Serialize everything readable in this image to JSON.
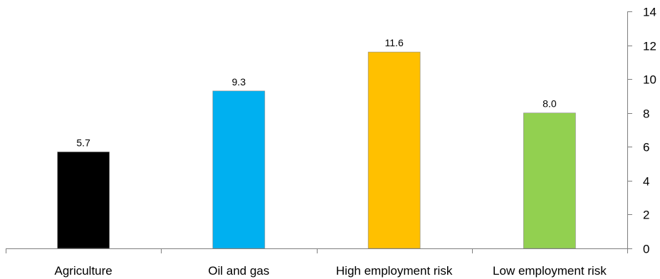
{
  "chart_data": {
    "type": "bar",
    "title": "",
    "xlabel": "",
    "ylabel": "",
    "categories": [
      "Agriculture",
      "Oil and gas",
      "High employment risk",
      "Low employment risk"
    ],
    "values": [
      5.7,
      9.3,
      11.6,
      8.0
    ],
    "data_labels": [
      "5.7",
      "9.3",
      "11.6",
      "8.0"
    ],
    "colors": [
      "#000000",
      "#00b0f0",
      "#ffc000",
      "#92d050"
    ],
    "ylim": [
      0,
      14
    ],
    "yticks": [
      0,
      2,
      4,
      6,
      8,
      10,
      12,
      14
    ],
    "y_axis_side": "right",
    "grid": false,
    "legend": "none"
  }
}
